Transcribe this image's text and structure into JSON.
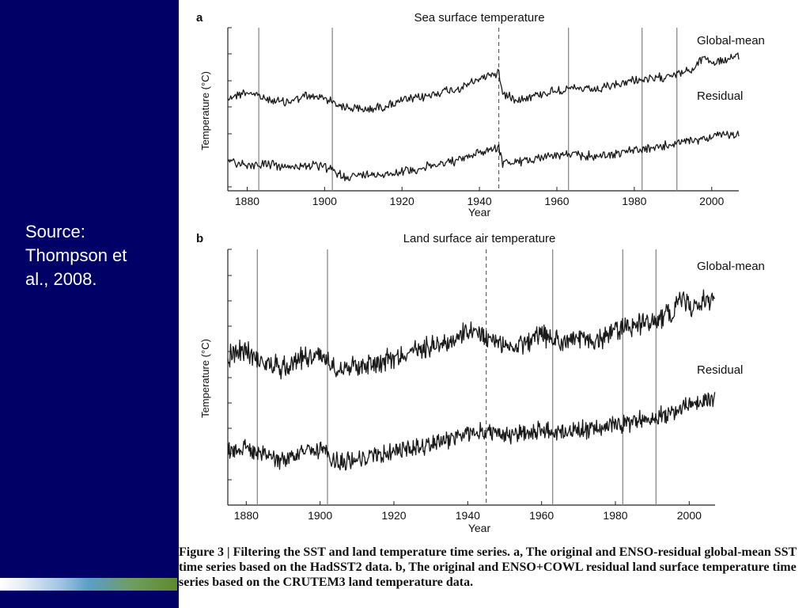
{
  "slide": {
    "source_line1": "Source:",
    "source_line2": "Thompson et",
    "source_line3": "al., 2008."
  },
  "caption": {
    "figure_label": "Figure 3",
    "separator": "|",
    "title": "Filtering the SST and land temperature time series.",
    "part_a_label": "a,",
    "part_a_text": "The original and ENSO-residual global-mean SST time series based on the HadSST2 data.",
    "part_b_label": "b,",
    "part_b_text": "The original and ENSO+COWL residual land surface temperature time series based on the CRUTEM3 land temperature data."
  },
  "colors": {
    "panel_bg": "#000066",
    "series_line": "#1a1a1a",
    "event_line": "#8a8a8a"
  },
  "chart_data": [
    {
      "type": "line",
      "panel_label": "a",
      "title": "Sea surface temperature",
      "xlabel": "Year",
      "ylabel": "Temperature (°C)",
      "xlim": [
        1875,
        2007
      ],
      "xticks": [
        "1880",
        "1900",
        "1920",
        "1940",
        "1960",
        "1980",
        "2000"
      ],
      "xtick_values": [
        1880,
        1900,
        1920,
        1940,
        1960,
        1980,
        2000
      ],
      "event_lines": [
        1883,
        1902,
        1963,
        1982,
        1991
      ],
      "dashed_event_line": 1945,
      "series": [
        {
          "name": "Global-mean",
          "x": [
            1875,
            1880,
            1885,
            1890,
            1895,
            1900,
            1905,
            1910,
            1915,
            1920,
            1925,
            1930,
            1935,
            1940,
            1943,
            1945,
            1946,
            1950,
            1955,
            1960,
            1965,
            1970,
            1975,
            1980,
            1985,
            1990,
            1995,
            1998,
            2000,
            2005,
            2007
          ],
          "values": [
            -0.3,
            -0.22,
            -0.32,
            -0.36,
            -0.28,
            -0.3,
            -0.42,
            -0.46,
            -0.42,
            -0.34,
            -0.3,
            -0.22,
            -0.18,
            -0.05,
            0.02,
            0.03,
            -0.25,
            -0.32,
            -0.26,
            -0.2,
            -0.18,
            -0.2,
            -0.14,
            -0.06,
            -0.06,
            0.02,
            0.06,
            0.26,
            0.16,
            0.22,
            0.24
          ]
        },
        {
          "name": "Residual",
          "x": [
            1875,
            1880,
            1885,
            1890,
            1895,
            1900,
            1905,
            1910,
            1915,
            1920,
            1925,
            1930,
            1935,
            1940,
            1943,
            1945,
            1946,
            1950,
            1955,
            1960,
            1965,
            1970,
            1975,
            1980,
            1985,
            1990,
            1995,
            2000,
            2005,
            2007
          ],
          "values": [
            -0.34,
            -0.42,
            -0.4,
            -0.46,
            -0.42,
            -0.45,
            -0.6,
            -0.58,
            -0.56,
            -0.52,
            -0.47,
            -0.4,
            -0.34,
            -0.22,
            -0.16,
            -0.14,
            -0.38,
            -0.38,
            -0.3,
            -0.26,
            -0.26,
            -0.28,
            -0.24,
            -0.18,
            -0.16,
            -0.08,
            -0.04,
            0.04,
            0.06,
            0.07
          ]
        }
      ]
    },
    {
      "type": "line",
      "panel_label": "b",
      "title": "Land surface air temperature",
      "xlabel": "Year",
      "ylabel": "Temperature (°C)",
      "xlim": [
        1875,
        2007
      ],
      "xticks": [
        "1880",
        "1900",
        "1920",
        "1940",
        "1960",
        "1980",
        "2000"
      ],
      "xtick_values": [
        1880,
        1900,
        1920,
        1940,
        1960,
        1980,
        2000
      ],
      "event_lines": [
        1883,
        1902,
        1963,
        1982,
        1991
      ],
      "dashed_event_line": 1945,
      "series": [
        {
          "name": "Global-mean",
          "x": [
            1875,
            1880,
            1885,
            1890,
            1895,
            1900,
            1905,
            1910,
            1915,
            1920,
            1925,
            1930,
            1935,
            1940,
            1945,
            1950,
            1955,
            1960,
            1965,
            1970,
            1975,
            1980,
            1985,
            1990,
            1995,
            1998,
            2000,
            2005,
            2007
          ],
          "values": [
            -0.3,
            -0.22,
            -0.38,
            -0.42,
            -0.3,
            -0.28,
            -0.42,
            -0.4,
            -0.36,
            -0.3,
            -0.24,
            -0.16,
            -0.12,
            -0.02,
            -0.06,
            -0.18,
            -0.14,
            -0.06,
            -0.12,
            -0.1,
            -0.12,
            0.02,
            0.06,
            0.12,
            0.2,
            0.4,
            0.26,
            0.36,
            0.4
          ]
        },
        {
          "name": "Residual",
          "x": [
            1875,
            1880,
            1885,
            1890,
            1895,
            1900,
            1905,
            1910,
            1915,
            1920,
            1925,
            1930,
            1935,
            1940,
            1945,
            1950,
            1955,
            1960,
            1965,
            1970,
            1975,
            1980,
            1985,
            1990,
            1995,
            2000,
            2005,
            2007
          ],
          "values": [
            -0.32,
            -0.28,
            -0.4,
            -0.46,
            -0.36,
            -0.32,
            -0.5,
            -0.44,
            -0.4,
            -0.34,
            -0.3,
            -0.22,
            -0.16,
            -0.1,
            -0.06,
            -0.12,
            -0.08,
            -0.04,
            -0.06,
            -0.04,
            -0.02,
            0.04,
            0.08,
            0.14,
            0.2,
            0.32,
            0.38,
            0.4
          ]
        }
      ]
    }
  ]
}
